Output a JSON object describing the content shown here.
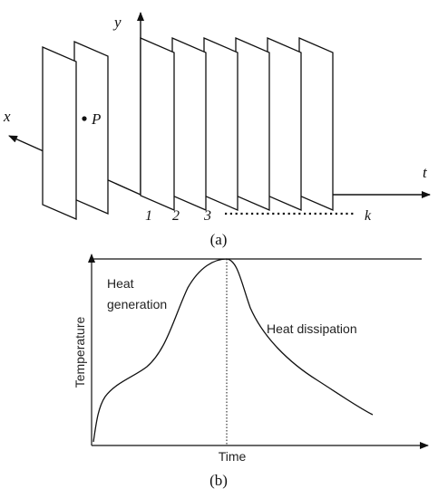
{
  "panel_a": {
    "caption": "(a)",
    "axis_y": "y",
    "axis_x": "x",
    "axis_t": "t",
    "point_label": "P",
    "frame_labels": [
      "1",
      "2",
      "3",
      "k"
    ]
  },
  "panel_b": {
    "caption": "(b)",
    "ylabel": "Temperature",
    "xlabel": "Time",
    "annotation_generation_line1": "Heat",
    "annotation_generation_line2": "generation",
    "annotation_dissipation": "Heat dissipation"
  }
}
